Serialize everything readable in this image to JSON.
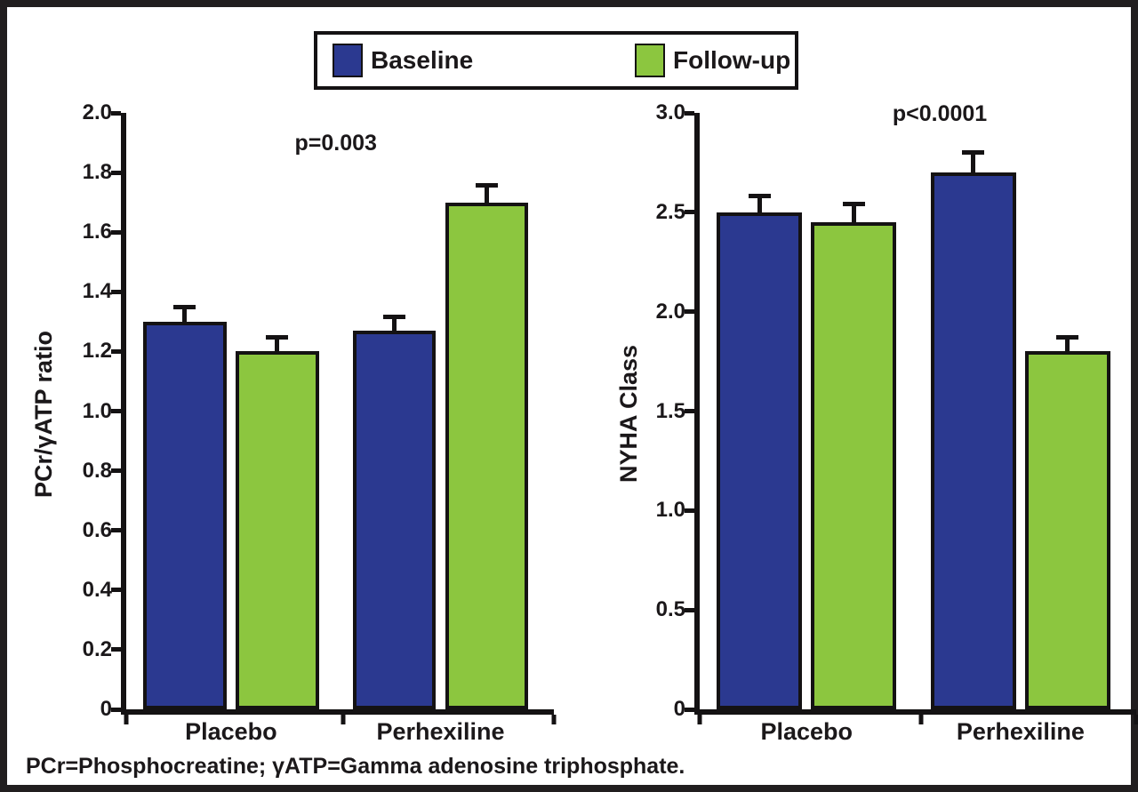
{
  "colors": {
    "baseline": "#2B3990",
    "followup": "#8CC63F",
    "axis": "#141213",
    "frame": "#211E1F"
  },
  "legend": {
    "entries": [
      {
        "label": "Baseline",
        "color_key": "baseline"
      },
      {
        "label": "Follow-up",
        "color_key": "followup"
      }
    ]
  },
  "footnote": "PCr=Phosphocreatine; γATP=Gamma adenosine triphosphate.",
  "chart_data": [
    {
      "type": "bar",
      "title": "",
      "ylabel": "PCr/γATP ratio",
      "xlabel": "",
      "annotation": "p=0.003",
      "ylim": [
        0,
        2.0
      ],
      "grid": false,
      "legend_position": "top-center-shared",
      "categories": [
        "Placebo",
        "Perhexiline"
      ],
      "series": [
        {
          "name": "Baseline",
          "color_key": "baseline",
          "values": [
            1.3,
            1.27
          ],
          "errors_up": [
            0.04,
            0.04
          ]
        },
        {
          "name": "Follow-up",
          "color_key": "followup",
          "values": [
            1.2,
            1.7
          ],
          "errors_up": [
            0.04,
            0.05
          ]
        }
      ],
      "yticks": [
        {
          "v": 0,
          "label": "0"
        },
        {
          "v": 0.2,
          "label": "0.2"
        },
        {
          "v": 0.4,
          "label": "0.4"
        },
        {
          "v": 0.6,
          "label": "0.6"
        },
        {
          "v": 0.8,
          "label": "0.8"
        },
        {
          "v": 1.0,
          "label": "1.0"
        },
        {
          "v": 1.2,
          "label": "1.2"
        },
        {
          "v": 1.4,
          "label": "1.4"
        },
        {
          "v": 1.6,
          "label": "1.6"
        },
        {
          "v": 1.8,
          "label": "1.8"
        },
        {
          "v": 2.0,
          "label": "2.0"
        }
      ]
    },
    {
      "type": "bar",
      "title": "",
      "ylabel": "NYHA Class",
      "xlabel": "",
      "annotation": "p<0.0001",
      "ylim": [
        0,
        3.0
      ],
      "grid": false,
      "legend_position": "top-center-shared",
      "categories": [
        "Placebo",
        "Perhexiline"
      ],
      "series": [
        {
          "name": "Baseline",
          "color_key": "baseline",
          "values": [
            2.5,
            2.7
          ],
          "errors_up": [
            0.07,
            0.09
          ]
        },
        {
          "name": "Follow-up",
          "color_key": "followup",
          "values": [
            2.45,
            1.8
          ],
          "errors_up": [
            0.08,
            0.06
          ]
        }
      ],
      "yticks": [
        {
          "v": 0,
          "label": "0"
        },
        {
          "v": 0.5,
          "label": "0.5"
        },
        {
          "v": 1.0,
          "label": "1.0"
        },
        {
          "v": 1.5,
          "label": "1.5"
        },
        {
          "v": 2.0,
          "label": "2.0"
        },
        {
          "v": 2.5,
          "label": "2.5"
        },
        {
          "v": 3.0,
          "label": "3.0"
        }
      ]
    }
  ]
}
